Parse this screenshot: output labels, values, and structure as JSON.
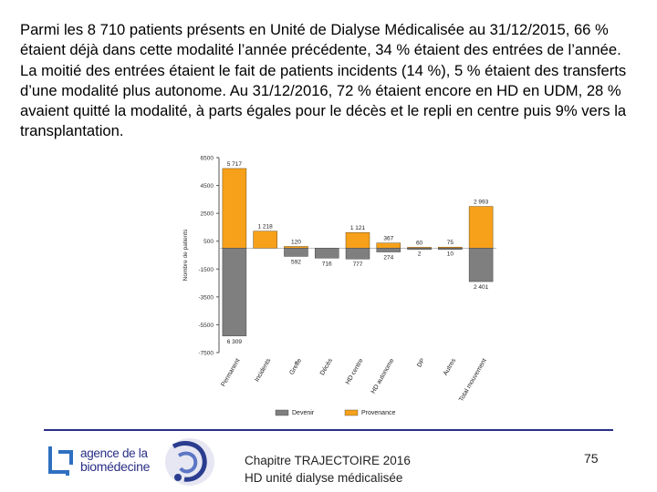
{
  "slide": {
    "intro_text": "Parmi les 8 710 patients présents en Unité de Dialyse Médicalisée au 31/12/2015, 66 % étaient déjà dans cette modalité l’année précédente, 34 % étaient des entrées de l’année. La moitié des entrées étaient le fait de patients incidents (14 %), 5 % étaient des transferts d’une modalité plus autonome. Au 31/12/2016, 72 % étaient encore en HD en UDM, 28 % avaient quitté la modalité, à parts égales pour le décès et le repli en centre puis 9% vers la transplantation."
  },
  "chart_data": {
    "type": "bar",
    "ylabel": "Nombre de patients",
    "ylim": [
      -7500,
      6500
    ],
    "yticks": [
      6500,
      4500,
      2500,
      500,
      -1500,
      -3500,
      -5500,
      -7500
    ],
    "categories": [
      "Permanent",
      "Incidents",
      "Greffe",
      "Décès",
      "HD centre",
      "HD autonome",
      "DP",
      "Autres",
      "Total mouvement"
    ],
    "series": [
      {
        "name": "Devenir",
        "color": "#7f7f7f",
        "values": [
          -6309,
          0,
          -592,
          -716,
          -777,
          -274,
          -2,
          -10,
          -2401
        ],
        "labels": [
          "6 309",
          "",
          "592",
          "716",
          "777",
          "274",
          "2",
          "10",
          "2 401"
        ]
      },
      {
        "name": "Provenance",
        "color": "#f7a11a",
        "values": [
          5717,
          1218,
          120,
          0,
          1121,
          367,
          60,
          75,
          2993
        ],
        "labels": [
          "5 717",
          "1 218",
          "120",
          "",
          "1 121",
          "367",
          "60",
          "75",
          "2 993"
        ]
      }
    ],
    "legend": {
      "position": "bottom",
      "items": [
        "Devenir",
        "Provenance"
      ]
    },
    "grid": false
  },
  "footer": {
    "logo_line1": "agence de la",
    "logo_line2": "biomédecine",
    "center_line1": "Chapitre TRAJECTOIRE 2016",
    "center_line2": "HD unité dialyse médicalisée",
    "page_number": "75",
    "rule_color": "#2a2f86"
  }
}
